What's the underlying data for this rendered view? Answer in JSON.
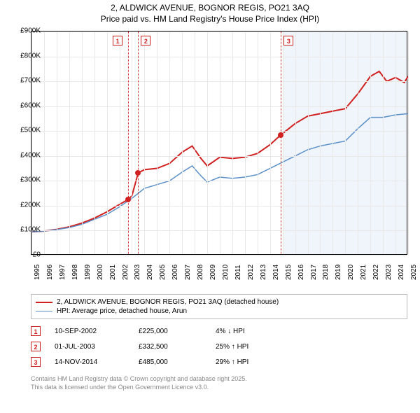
{
  "title": {
    "line1": "2, ALDWICK AVENUE, BOGNOR REGIS, PO21 3AQ",
    "line2": "Price paid vs. HM Land Registry's House Price Index (HPI)"
  },
  "chart": {
    "type": "line",
    "background_color": "#ffffff",
    "grid_color": "#e8e8e8",
    "axis_color": "#000000",
    "label_fontsize": 10,
    "x_years": [
      1995,
      1996,
      1997,
      1998,
      1999,
      2000,
      2001,
      2002,
      2003,
      2004,
      2005,
      2006,
      2007,
      2008,
      2009,
      2010,
      2011,
      2012,
      2013,
      2014,
      2015,
      2016,
      2017,
      2018,
      2019,
      2020,
      2021,
      2022,
      2023,
      2024,
      2025
    ],
    "y_ticks": [
      0,
      100,
      200,
      300,
      400,
      500,
      600,
      700,
      800,
      900
    ],
    "y_tick_labels": [
      "£0",
      "£100K",
      "£200K",
      "£300K",
      "£400K",
      "£500K",
      "£600K",
      "£700K",
      "£800K",
      "£900K"
    ],
    "ylim": [
      0,
      900
    ],
    "forecast_start_year": 2015,
    "series": [
      {
        "name": "property",
        "label": "2, ALDWICK AVENUE, BOGNOR REGIS, PO21 3AQ (detached house)",
        "color": "#d02020",
        "line_width": 2,
        "points": [
          [
            1995,
            95
          ],
          [
            1996,
            98
          ],
          [
            1997,
            105
          ],
          [
            1998,
            115
          ],
          [
            1999,
            130
          ],
          [
            2000,
            150
          ],
          [
            2001,
            175
          ],
          [
            2002,
            205
          ],
          [
            2002.7,
            225
          ],
          [
            2003,
            240
          ],
          [
            2003.5,
            332
          ],
          [
            2004,
            345
          ],
          [
            2005,
            350
          ],
          [
            2006,
            370
          ],
          [
            2007,
            415
          ],
          [
            2007.8,
            440
          ],
          [
            2008.5,
            390
          ],
          [
            2009,
            360
          ],
          [
            2010,
            395
          ],
          [
            2011,
            390
          ],
          [
            2012,
            395
          ],
          [
            2013,
            410
          ],
          [
            2014,
            445
          ],
          [
            2014.87,
            485
          ],
          [
            2015.5,
            510
          ],
          [
            2016,
            530
          ],
          [
            2017,
            560
          ],
          [
            2018,
            570
          ],
          [
            2019,
            580
          ],
          [
            2020,
            590
          ],
          [
            2021,
            650
          ],
          [
            2022,
            720
          ],
          [
            2022.7,
            740
          ],
          [
            2023.3,
            700
          ],
          [
            2024,
            715
          ],
          [
            2024.7,
            695
          ],
          [
            2025,
            720
          ]
        ]
      },
      {
        "name": "hpi",
        "label": "HPI: Average price, detached house, Arun",
        "color": "#5b8fc7",
        "line_width": 1.5,
        "points": [
          [
            1995,
            95
          ],
          [
            1996,
            98
          ],
          [
            1997,
            104
          ],
          [
            1998,
            112
          ],
          [
            1999,
            125
          ],
          [
            2000,
            145
          ],
          [
            2001,
            165
          ],
          [
            2002,
            195
          ],
          [
            2003,
            230
          ],
          [
            2004,
            270
          ],
          [
            2005,
            285
          ],
          [
            2006,
            300
          ],
          [
            2007,
            335
          ],
          [
            2007.8,
            360
          ],
          [
            2008.5,
            320
          ],
          [
            2009,
            295
          ],
          [
            2010,
            315
          ],
          [
            2011,
            310
          ],
          [
            2012,
            315
          ],
          [
            2013,
            325
          ],
          [
            2014,
            350
          ],
          [
            2015,
            375
          ],
          [
            2016,
            400
          ],
          [
            2017,
            425
          ],
          [
            2018,
            440
          ],
          [
            2019,
            450
          ],
          [
            2020,
            460
          ],
          [
            2021,
            510
          ],
          [
            2022,
            555
          ],
          [
            2023,
            555
          ],
          [
            2024,
            565
          ],
          [
            2025,
            570
          ]
        ]
      }
    ],
    "sale_markers": [
      {
        "n": "1",
        "year": 2002.7,
        "price": 225,
        "label_offset_x": -22
      },
      {
        "n": "2",
        "year": 2003.5,
        "price": 332,
        "label_offset_x": 4
      },
      {
        "n": "3",
        "year": 2014.87,
        "price": 485,
        "label_offset_x": 4
      }
    ]
  },
  "legend": {
    "border_color": "#bbbbbb"
  },
  "sales": [
    {
      "n": "1",
      "date": "10-SEP-2002",
      "price": "£225,000",
      "delta": "4% ↓ HPI"
    },
    {
      "n": "2",
      "date": "01-JUL-2003",
      "price": "£332,500",
      "delta": "25% ↑ HPI"
    },
    {
      "n": "3",
      "date": "14-NOV-2014",
      "price": "£485,000",
      "delta": "29% ↑ HPI"
    }
  ],
  "footer": {
    "line1": "Contains HM Land Registry data © Crown copyright and database right 2025.",
    "line2": "This data is licensed under the Open Government Licence v3.0."
  }
}
